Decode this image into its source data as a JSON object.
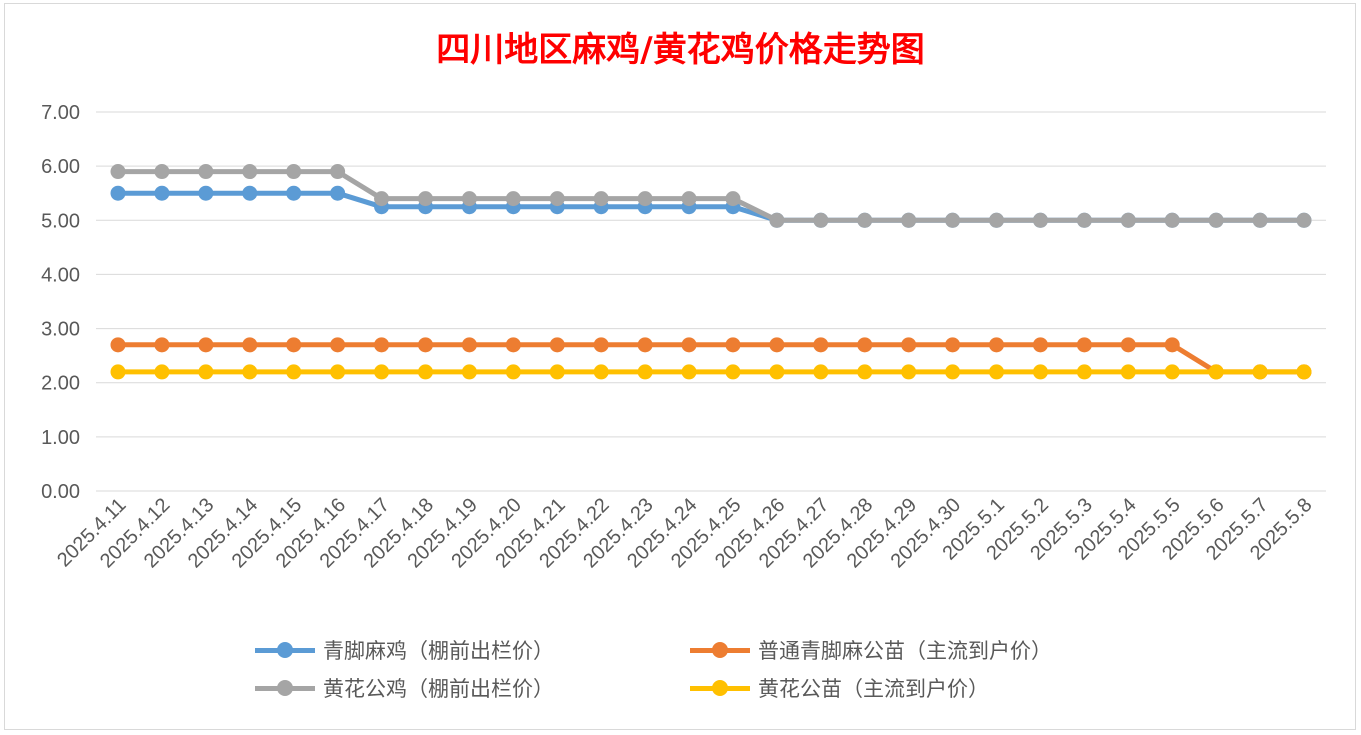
{
  "chart_data": {
    "type": "line",
    "title": "四川地区麻鸡/黄花鸡价格走势图",
    "xlabel": "",
    "ylabel": "",
    "ylim": [
      0,
      7
    ],
    "yticks": [
      "0.00",
      "1.00",
      "2.00",
      "3.00",
      "4.00",
      "5.00",
      "6.00",
      "7.00"
    ],
    "grid": true,
    "legend_position": "bottom",
    "categories": [
      "2025.4.11",
      "2025.4.12",
      "2025.4.13",
      "2025.4.14",
      "2025.4.15",
      "2025.4.16",
      "2025.4.17",
      "2025.4.18",
      "2025.4.19",
      "2025.4.20",
      "2025.4.21",
      "2025.4.22",
      "2025.4.23",
      "2025.4.24",
      "2025.4.25",
      "2025.4.26",
      "2025.4.27",
      "2025.4.28",
      "2025.4.29",
      "2025.4.30",
      "2025.5.1",
      "2025.5.2",
      "2025.5.3",
      "2025.5.4",
      "2025.5.5",
      "2025.5.6",
      "2025.5.7",
      "2025.5.8"
    ],
    "series": [
      {
        "name": "青脚麻鸡（棚前出栏价）",
        "color": "#5b9bd5",
        "values": [
          5.5,
          5.5,
          5.5,
          5.5,
          5.5,
          5.5,
          5.25,
          5.25,
          5.25,
          5.25,
          5.25,
          5.25,
          5.25,
          5.25,
          5.25,
          5.0,
          5.0,
          5.0,
          5.0,
          5.0,
          5.0,
          5.0,
          5.0,
          5.0,
          5.0,
          5.0,
          5.0,
          5.0
        ]
      },
      {
        "name": "普通青脚麻公苗（主流到户价）",
        "color": "#ed7d31",
        "values": [
          2.7,
          2.7,
          2.7,
          2.7,
          2.7,
          2.7,
          2.7,
          2.7,
          2.7,
          2.7,
          2.7,
          2.7,
          2.7,
          2.7,
          2.7,
          2.7,
          2.7,
          2.7,
          2.7,
          2.7,
          2.7,
          2.7,
          2.7,
          2.7,
          2.7,
          2.2,
          2.2,
          2.2
        ]
      },
      {
        "name": "黄花公鸡（棚前出栏价）",
        "color": "#a5a5a5",
        "values": [
          5.9,
          5.9,
          5.9,
          5.9,
          5.9,
          5.9,
          5.4,
          5.4,
          5.4,
          5.4,
          5.4,
          5.4,
          5.4,
          5.4,
          5.4,
          5.0,
          5.0,
          5.0,
          5.0,
          5.0,
          5.0,
          5.0,
          5.0,
          5.0,
          5.0,
          5.0,
          5.0,
          5.0
        ]
      },
      {
        "name": "黄花公苗（主流到户价）",
        "color": "#ffc000",
        "values": [
          2.2,
          2.2,
          2.2,
          2.2,
          2.2,
          2.2,
          2.2,
          2.2,
          2.2,
          2.2,
          2.2,
          2.2,
          2.2,
          2.2,
          2.2,
          2.2,
          2.2,
          2.2,
          2.2,
          2.2,
          2.2,
          2.2,
          2.2,
          2.2,
          2.2,
          2.2,
          2.2,
          2.2
        ]
      }
    ],
    "draw_order": [
      1,
      3,
      0,
      2
    ]
  }
}
